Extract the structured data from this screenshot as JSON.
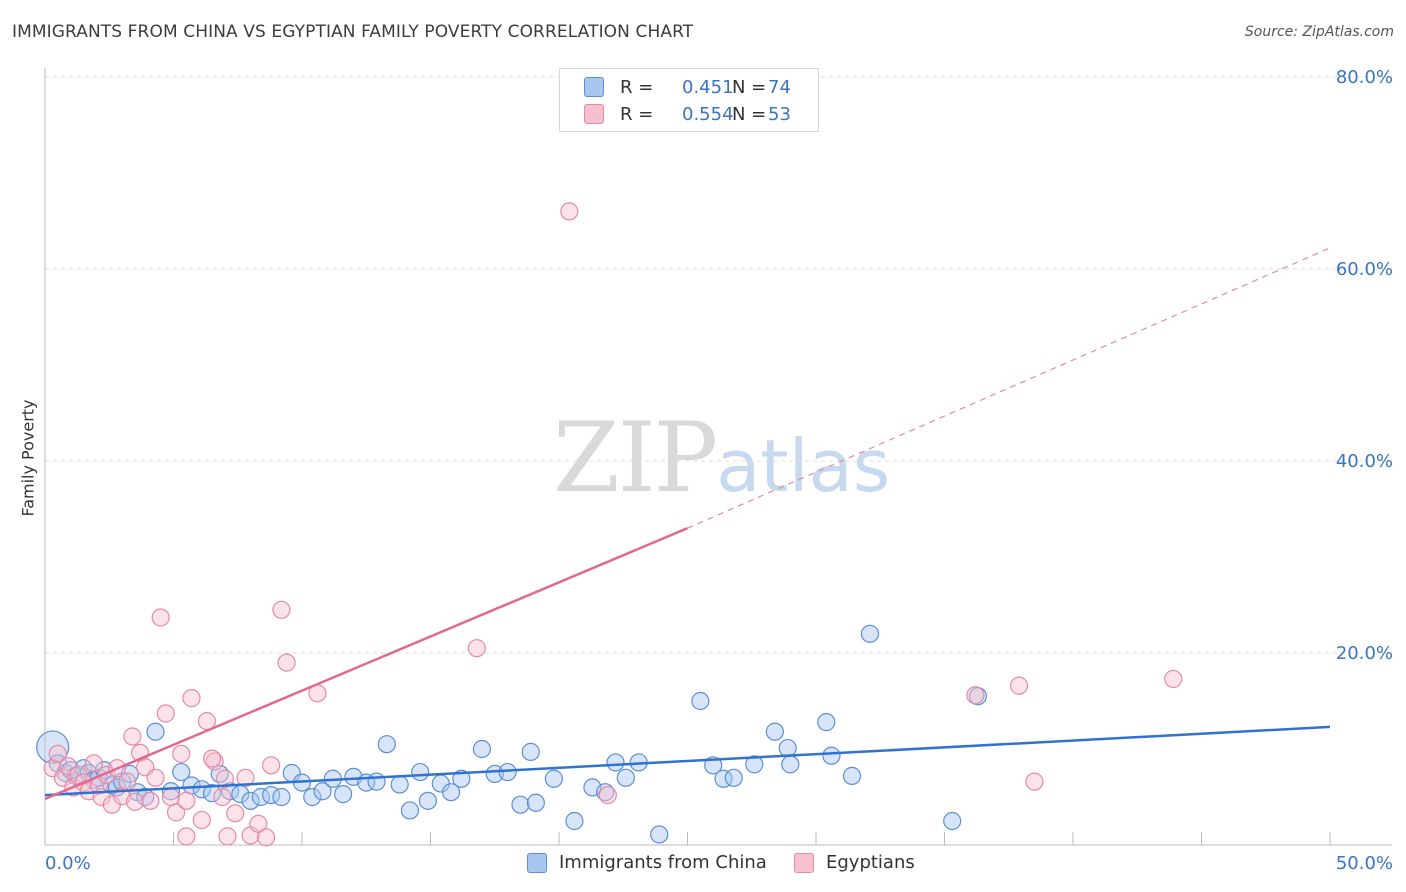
{
  "header": {
    "title": "IMMIGRANTS FROM CHINA VS EGYPTIAN FAMILY POVERTY CORRELATION CHART",
    "source": "Source: ZipAtlas.com"
  },
  "watermark": {
    "zip": "ZIP",
    "atlas": "atlas"
  },
  "legend": {
    "rows": [
      {
        "r_label": "R =",
        "r_value": "0.451",
        "n_label": "N =",
        "n_value": "74",
        "color": "#a9c6ef",
        "border": "#5b8fd6"
      },
      {
        "r_label": "R =",
        "r_value": "0.554",
        "n_label": "N =",
        "n_value": "53",
        "color": "#f7c0cf",
        "border": "#e58aa6"
      }
    ]
  },
  "bottom_legend": {
    "items": [
      {
        "label": "Immigrants from China",
        "color": "#a9c6ef",
        "border": "#5b8fd6"
      },
      {
        "label": "Egyptians",
        "color": "#f7c0cf",
        "border": "#e58aa6"
      }
    ]
  },
  "chart_data": {
    "type": "scatter",
    "title": "IMMIGRANTS FROM CHINA VS EGYPTIAN FAMILY POVERTY CORRELATION CHART",
    "xlabel": "",
    "ylabel": "Family Poverty",
    "xlim": [
      0,
      50
    ],
    "ylim": [
      0,
      80
    ],
    "x_tick_labels": [
      "0.0%",
      "50.0%"
    ],
    "y_ticks": [
      20,
      40,
      60,
      80
    ],
    "y_tick_labels": [
      "20.0%",
      "40.0%",
      "60.0%",
      "80.0%"
    ],
    "grid": true,
    "series": [
      {
        "name": "Immigrants from China",
        "color": "#5b8fd6",
        "fill": "#a9c6ef",
        "trend": {
          "x0": 0,
          "y0": 5.2,
          "x1": 50,
          "y1": 12.3
        },
        "points": [
          [
            0.3,
            10.2
          ],
          [
            0.5,
            8.5
          ],
          [
            0.8,
            7.5
          ],
          [
            1.0,
            7.8
          ],
          [
            1.2,
            7.2
          ],
          [
            1.5,
            8.0
          ],
          [
            1.7,
            7.5
          ],
          [
            1.9,
            6.8
          ],
          [
            2.1,
            7.0
          ],
          [
            2.3,
            7.8
          ],
          [
            2.6,
            6.2
          ],
          [
            2.8,
            6.0
          ],
          [
            3.0,
            6.6
          ],
          [
            3.3,
            7.4
          ],
          [
            3.6,
            5.5
          ],
          [
            3.9,
            5.0
          ],
          [
            4.3,
            11.8
          ],
          [
            4.9,
            5.6
          ],
          [
            5.3,
            7.6
          ],
          [
            5.7,
            6.2
          ],
          [
            6.1,
            5.8
          ],
          [
            6.5,
            5.4
          ],
          [
            6.8,
            7.4
          ],
          [
            7.2,
            5.6
          ],
          [
            7.6,
            5.3
          ],
          [
            8.0,
            4.6
          ],
          [
            8.4,
            5.0
          ],
          [
            8.8,
            5.2
          ],
          [
            9.2,
            5.0
          ],
          [
            9.6,
            7.5
          ],
          [
            10.0,
            6.5
          ],
          [
            10.4,
            5.0
          ],
          [
            10.8,
            5.6
          ],
          [
            11.2,
            6.9
          ],
          [
            11.6,
            5.3
          ],
          [
            12.0,
            7.1
          ],
          [
            12.5,
            6.5
          ],
          [
            12.9,
            6.6
          ],
          [
            13.3,
            10.5
          ],
          [
            13.8,
            6.3
          ],
          [
            14.2,
            3.6
          ],
          [
            14.6,
            7.6
          ],
          [
            14.9,
            4.6
          ],
          [
            15.4,
            6.4
          ],
          [
            15.8,
            5.5
          ],
          [
            16.2,
            6.9
          ],
          [
            17.0,
            10.0
          ],
          [
            17.5,
            7.4
          ],
          [
            18.0,
            7.6
          ],
          [
            18.5,
            4.2
          ],
          [
            18.9,
            9.7
          ],
          [
            19.1,
            4.4
          ],
          [
            19.8,
            6.9
          ],
          [
            20.6,
            2.5
          ],
          [
            21.3,
            6.0
          ],
          [
            21.8,
            5.5
          ],
          [
            22.2,
            8.6
          ],
          [
            22.6,
            7.0
          ],
          [
            23.1,
            8.6
          ],
          [
            23.9,
            1.1
          ],
          [
            25.5,
            15.0
          ],
          [
            26.0,
            8.3
          ],
          [
            26.4,
            6.9
          ],
          [
            26.8,
            7.0
          ],
          [
            27.6,
            8.4
          ],
          [
            28.4,
            11.8
          ],
          [
            28.9,
            10.1
          ],
          [
            29.0,
            8.4
          ],
          [
            30.4,
            12.8
          ],
          [
            30.6,
            9.3
          ],
          [
            31.4,
            7.2
          ],
          [
            32.1,
            22.0
          ],
          [
            35.3,
            2.5
          ],
          [
            36.3,
            15.5
          ]
        ]
      },
      {
        "name": "Egyptians",
        "color": "#e58aa6",
        "fill": "#f7c0cf",
        "trend": {
          "x0": 0,
          "y0": 4.8,
          "x1": 25,
          "y1": 33.0
        },
        "trend_dashed": {
          "x0": 25,
          "y0": 33.0,
          "x1": 50,
          "y1": 62.2
        },
        "points": [
          [
            0.3,
            8.0
          ],
          [
            0.5,
            9.5
          ],
          [
            0.7,
            7.0
          ],
          [
            0.9,
            8.2
          ],
          [
            1.1,
            6.0
          ],
          [
            1.3,
            7.3
          ],
          [
            1.5,
            6.5
          ],
          [
            1.7,
            5.6
          ],
          [
            1.9,
            8.5
          ],
          [
            2.1,
            6.2
          ],
          [
            2.2,
            5.0
          ],
          [
            2.4,
            7.3
          ],
          [
            2.6,
            4.2
          ],
          [
            2.8,
            8.0
          ],
          [
            3.0,
            5.1
          ],
          [
            3.2,
            6.6
          ],
          [
            3.4,
            11.3
          ],
          [
            3.5,
            4.5
          ],
          [
            3.7,
            9.6
          ],
          [
            3.9,
            8.1
          ],
          [
            4.1,
            4.6
          ],
          [
            4.3,
            7.0
          ],
          [
            4.5,
            23.7
          ],
          [
            4.7,
            13.7
          ],
          [
            4.9,
            5.0
          ],
          [
            5.1,
            3.4
          ],
          [
            5.3,
            9.5
          ],
          [
            5.5,
            4.6
          ],
          [
            5.7,
            15.3
          ],
          [
            6.1,
            2.6
          ],
          [
            6.3,
            12.9
          ],
          [
            6.6,
            8.7
          ],
          [
            6.9,
            5.0
          ],
          [
            7.1,
            0.9
          ],
          [
            7.4,
            3.3
          ],
          [
            7.8,
            7.0
          ],
          [
            8.0,
            1.0
          ],
          [
            8.3,
            2.2
          ],
          [
            8.6,
            0.8
          ],
          [
            8.8,
            8.3
          ],
          [
            9.2,
            24.5
          ],
          [
            9.4,
            19.0
          ],
          [
            10.6,
            15.8
          ],
          [
            16.8,
            20.5
          ],
          [
            20.4,
            66.0
          ],
          [
            21.9,
            5.2
          ],
          [
            36.2,
            15.6
          ],
          [
            37.9,
            16.6
          ],
          [
            38.5,
            6.6
          ],
          [
            43.9,
            17.3
          ],
          [
            5.5,
            0.9
          ],
          [
            6.5,
            9.0
          ],
          [
            7.0,
            6.9
          ]
        ]
      }
    ]
  }
}
